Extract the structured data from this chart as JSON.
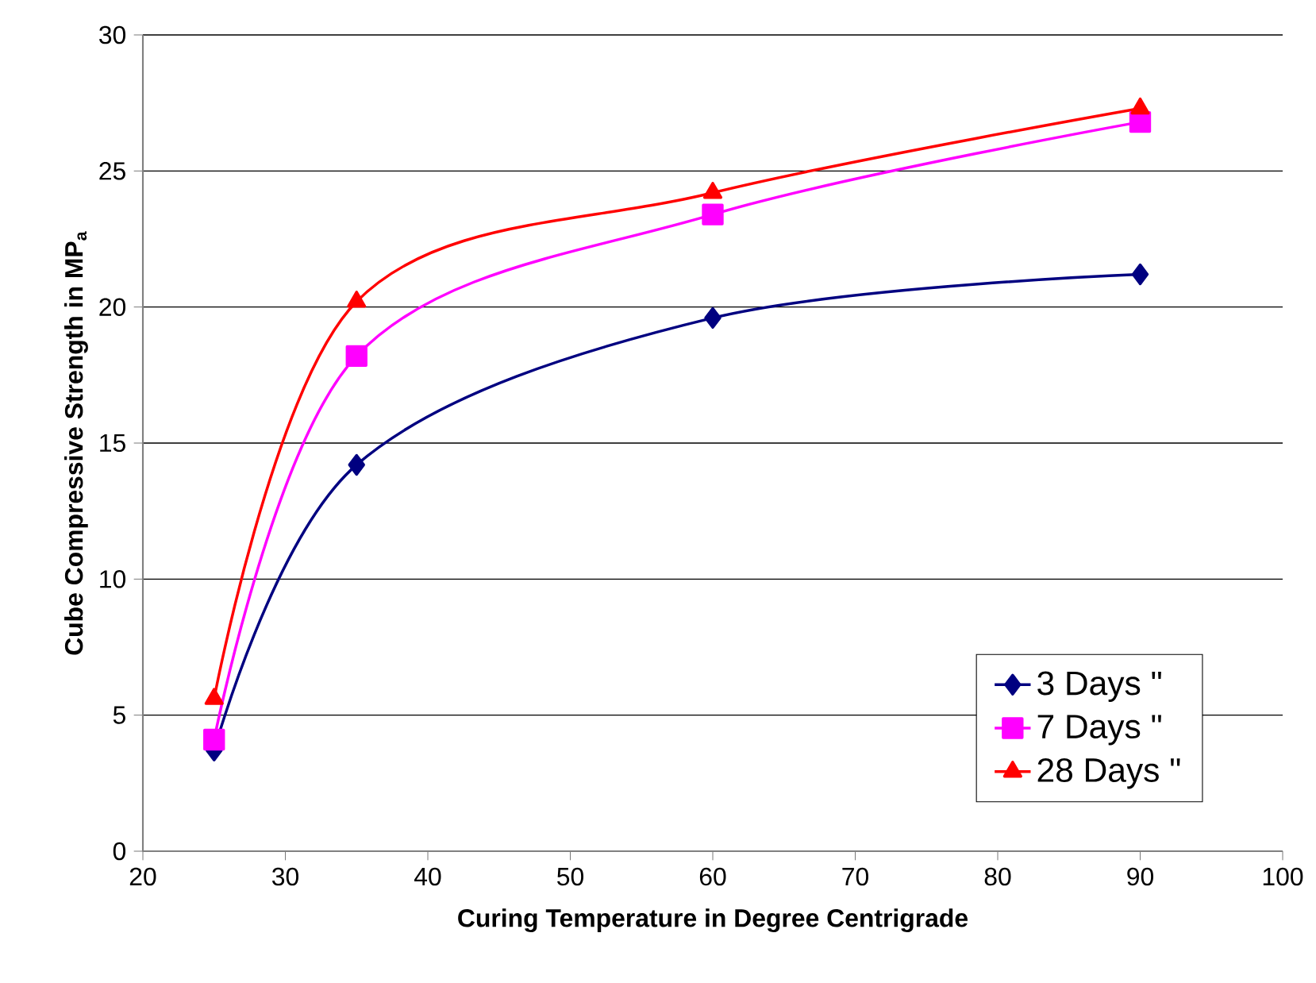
{
  "chart_data": {
    "type": "line",
    "xlabel": "Curing Temperature in Degree Centrigrade",
    "ylabel": "Cube Compressive Strength in MP$_{a}$",
    "x": [
      25,
      35,
      60,
      90
    ],
    "series": [
      {
        "name": "3 Days \"",
        "color": "#000080",
        "marker": "diamond",
        "values": [
          3.7,
          14.2,
          19.6,
          21.2
        ]
      },
      {
        "name": "7 Days \"",
        "color": "#ff00ff",
        "marker": "square",
        "values": [
          4.1,
          18.2,
          23.4,
          26.8
        ]
      },
      {
        "name": "28 Days \"",
        "color": "#ff0000",
        "marker": "triangle",
        "values": [
          5.6,
          20.2,
          24.2,
          27.3
        ]
      }
    ],
    "xlim": [
      20,
      100
    ],
    "xticks": [
      20,
      30,
      40,
      50,
      60,
      70,
      80,
      90,
      100
    ],
    "ylim": [
      0,
      30
    ],
    "yticks": [
      0,
      5,
      10,
      15,
      20,
      25,
      30
    ],
    "grid": "y",
    "legend": "bottom right"
  }
}
